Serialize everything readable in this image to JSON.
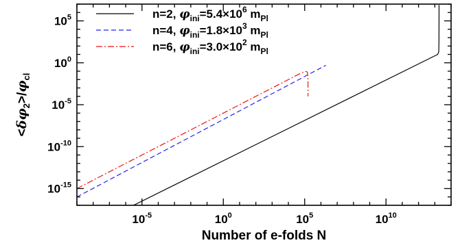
{
  "chart_data": {
    "type": "line",
    "xscale": "log",
    "yscale": "log",
    "xlim": [
      1e-09,
      100000000000000.0
    ],
    "ylim": [
      1e-17,
      10000000.0
    ],
    "xticks": [
      {
        "value": 1e-05,
        "base": "10",
        "exp": "-5"
      },
      {
        "value": 1,
        "base": "10",
        "exp": "0"
      },
      {
        "value": 100000.0,
        "base": "10",
        "exp": "5"
      },
      {
        "value": 10000000000.0,
        "base": "10",
        "exp": "10"
      }
    ],
    "yticks": [
      {
        "value": 100000.0,
        "base": "10",
        "exp": "5"
      },
      {
        "value": 1,
        "base": "10",
        "exp": "0"
      },
      {
        "value": 1e-05,
        "base": "10",
        "exp": "-5"
      },
      {
        "value": 1e-10,
        "base": "10",
        "exp": "-10"
      },
      {
        "value": 1e-15,
        "base": "10",
        "exp": "-15"
      }
    ],
    "xlabel": "Number of e-folds N",
    "ylabel": "<δφ₂>/φcl",
    "legend_position": "top-left",
    "series": [
      {
        "name": "n=2, φini=5.4×10⁶ mPl",
        "legend": {
          "n": "n=2,",
          "sym": "φ",
          "sub": "ini",
          "mid": "=5.4×10",
          "exp": "6",
          "unit": "m",
          "unit_sub": "Pl"
        },
        "color": "#000000",
        "dash": "solid",
        "points": [
          [
            3e-06,
            1e-17
          ],
          [
            15000000000000.0,
            10.0
          ],
          [
            17500000000000.0,
            20.0
          ],
          [
            18000000000000.0,
            300.0
          ],
          [
            18200000000000.0,
            300000.0
          ],
          [
            18200000000000.0,
            8000000.0
          ]
        ]
      },
      {
        "name": "n=4, φini=1.8×10³ mPl",
        "legend": {
          "n": "n=4,",
          "sym": "φ",
          "sub": "ini",
          "mid": "=1.8×10",
          "exp": "3",
          "unit": "m",
          "unit_sub": "Pl"
        },
        "color": "#2222ee",
        "dash": "dashed",
        "points": [
          [
            1e-09,
            1e-16
          ],
          [
            2000000.0,
            0.5
          ]
        ]
      },
      {
        "name": "n=6, φini=3.0×10² mPl",
        "legend": {
          "n": "n=6,",
          "sym": "φ",
          "sub": "ini",
          "mid": "=3.0×10",
          "exp": "2",
          "unit": "m",
          "unit_sub": "Pl"
        },
        "color": "#ee1111",
        "dash": "dashdot",
        "points": [
          [
            1e-09,
            1e-15
          ],
          [
            50000.0,
            0.05
          ],
          [
            100000.0,
            0.09
          ],
          [
            130000.0,
            0.09
          ],
          [
            150000.0,
            0.07
          ],
          [
            160000.0,
            0.01
          ],
          [
            160000.0,
            0.0001
          ]
        ]
      }
    ]
  }
}
